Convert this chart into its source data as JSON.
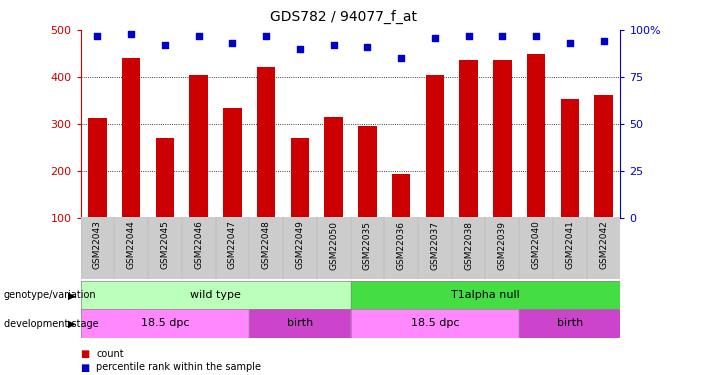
{
  "title": "GDS782 / 94077_f_at",
  "samples": [
    "GSM22043",
    "GSM22044",
    "GSM22045",
    "GSM22046",
    "GSM22047",
    "GSM22048",
    "GSM22049",
    "GSM22050",
    "GSM22035",
    "GSM22036",
    "GSM22037",
    "GSM22038",
    "GSM22039",
    "GSM22040",
    "GSM22041",
    "GSM22042"
  ],
  "counts": [
    312,
    441,
    270,
    403,
    334,
    421,
    270,
    315,
    296,
    193,
    403,
    437,
    437,
    449,
    353,
    362
  ],
  "percentiles": [
    97,
    98,
    92,
    97,
    93,
    97,
    90,
    92,
    91,
    85,
    96,
    97,
    97,
    97,
    93,
    94
  ],
  "bar_color": "#cc0000",
  "dot_color": "#0000cc",
  "ymin": 100,
  "ymax": 500,
  "yticks": [
    100,
    200,
    300,
    400,
    500
  ],
  "y2ticks": [
    0,
    25,
    50,
    75,
    100
  ],
  "y2labels": [
    "0",
    "25",
    "50",
    "75",
    "100%"
  ],
  "grid_values": [
    200,
    300,
    400
  ],
  "genotype_groups": [
    {
      "label": "wild type",
      "start": 0,
      "end": 8,
      "color": "#bbffbb"
    },
    {
      "label": "T1alpha null",
      "start": 8,
      "end": 16,
      "color": "#44dd44"
    }
  ],
  "stage_groups": [
    {
      "label": "18.5 dpc",
      "start": 0,
      "end": 5,
      "color": "#ff88ff"
    },
    {
      "label": "birth",
      "start": 5,
      "end": 8,
      "color": "#cc44cc"
    },
    {
      "label": "18.5 dpc",
      "start": 8,
      "end": 13,
      "color": "#ff88ff"
    },
    {
      "label": "birth",
      "start": 13,
      "end": 16,
      "color": "#cc44cc"
    }
  ],
  "legend_items": [
    {
      "label": "count",
      "color": "#cc0000"
    },
    {
      "label": "percentile rank within the sample",
      "color": "#0000cc"
    }
  ],
  "bg_color": "#ffffff",
  "xtick_bg_color": "#cccccc",
  "bar_width": 0.55
}
